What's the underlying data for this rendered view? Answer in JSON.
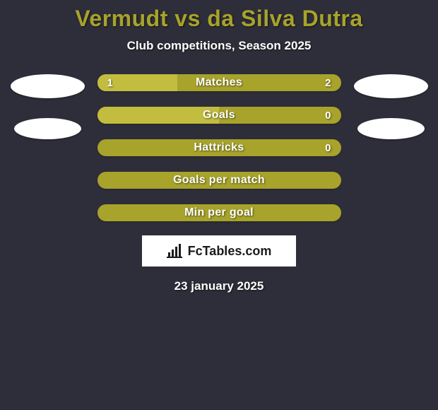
{
  "background_color": "#2e2e3a",
  "title": {
    "text": "Vermudt vs da Silva Dutra",
    "color": "#a7a32b",
    "fontsize": 32,
    "fontweight": 900
  },
  "subtitle": {
    "text": "Club competitions, Season 2025",
    "color": "#ffffff",
    "fontsize": 17
  },
  "avatar_color": "#ffffff",
  "bars": {
    "track_color": "#a7a32b",
    "fill_color_left": "#c2bd3e",
    "fill_color_right": "#c2bd3e",
    "label_color": "#ffffff",
    "value_color": "#ffffff",
    "height": 24,
    "radius": 12,
    "items": [
      {
        "label": "Matches",
        "left": "1",
        "right": "2",
        "left_pct": 33,
        "right_pct": 0
      },
      {
        "label": "Goals",
        "left": "",
        "right": "0",
        "left_pct": 50,
        "right_pct": 0
      },
      {
        "label": "Hattricks",
        "left": "",
        "right": "0",
        "left_pct": 0,
        "right_pct": 0
      },
      {
        "label": "Goals per match",
        "left": "",
        "right": "",
        "left_pct": 0,
        "right_pct": 0
      },
      {
        "label": "Min per goal",
        "left": "",
        "right": "",
        "left_pct": 0,
        "right_pct": 0
      }
    ]
  },
  "logo": {
    "text": "FcTables.com",
    "box_bg": "#ffffff",
    "text_color": "#1a1a1a",
    "icon_color": "#1a1a1a"
  },
  "date": {
    "text": "23 january 2025",
    "color": "#ffffff",
    "fontsize": 17
  }
}
